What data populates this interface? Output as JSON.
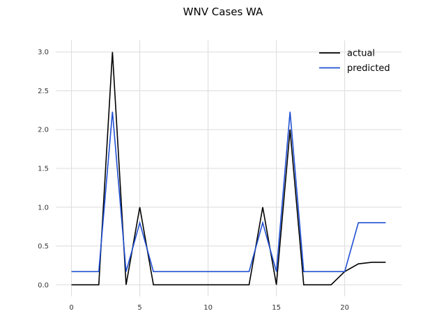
{
  "chart_data": {
    "type": "line",
    "title": "WNV Cases WA",
    "xlabel": "",
    "ylabel": "",
    "xlim": [
      -1.15,
      24.15
    ],
    "ylim": [
      -0.15,
      3.15
    ],
    "xticks": [
      0,
      5,
      10,
      15,
      20
    ],
    "yticks": [
      0.0,
      0.5,
      1.0,
      1.5,
      2.0,
      2.5,
      3.0
    ],
    "ytick_labels": [
      "0.0",
      "0.5",
      "1.0",
      "1.5",
      "2.0",
      "2.5",
      "3.0"
    ],
    "grid": true,
    "legend_position": "top-right",
    "x": [
      0,
      1,
      2,
      3,
      4,
      5,
      6,
      7,
      8,
      9,
      10,
      11,
      12,
      13,
      14,
      15,
      16,
      17,
      18,
      19,
      20,
      21,
      22,
      23
    ],
    "series": [
      {
        "name": "actual",
        "color": "#000000",
        "values": [
          0,
          0,
          0,
          3,
          0,
          1,
          0,
          0,
          0,
          0,
          0,
          0,
          0,
          0,
          1,
          0,
          2,
          0,
          0,
          0,
          0.17,
          0.27,
          0.29,
          0.29
        ]
      },
      {
        "name": "predicted",
        "color": "#1f4fd1",
        "values": [
          0.17,
          0.17,
          0.17,
          2.23,
          0.17,
          0.8,
          0.17,
          0.17,
          0.17,
          0.17,
          0.17,
          0.17,
          0.17,
          0.17,
          0.8,
          0.17,
          2.23,
          0.17,
          0.17,
          0.17,
          0.17,
          0.8,
          0.8,
          0.8
        ]
      }
    ]
  }
}
